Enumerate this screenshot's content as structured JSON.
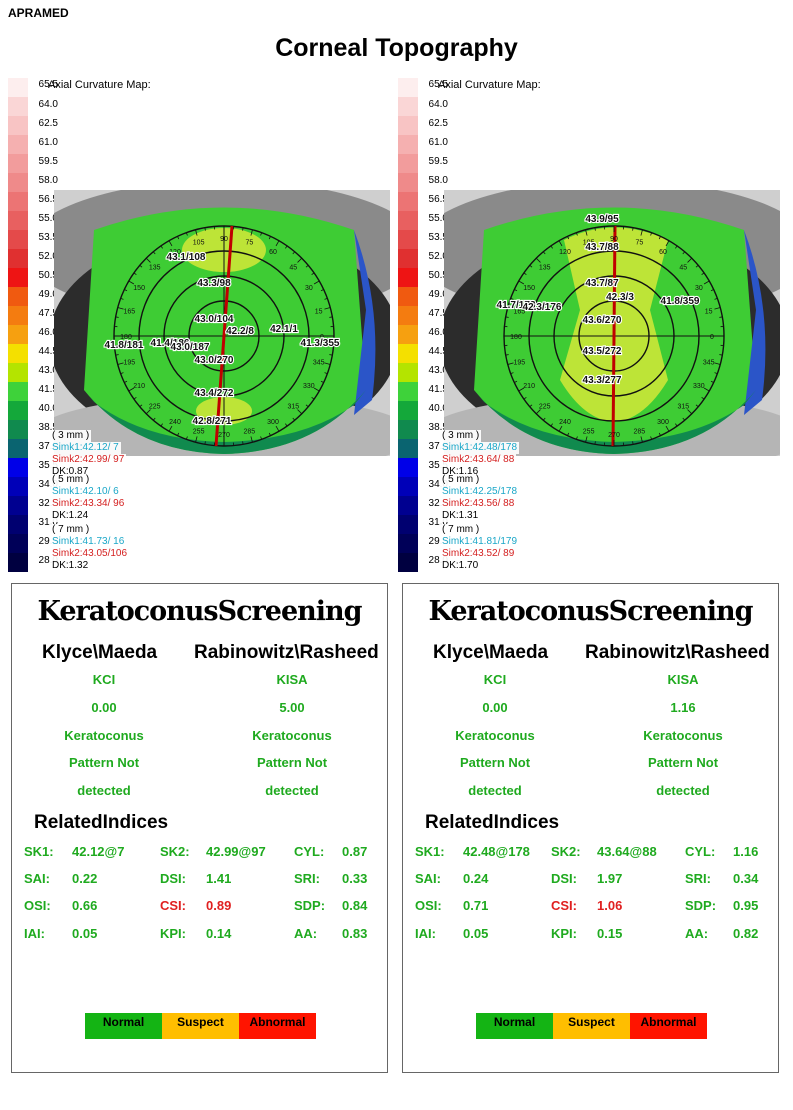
{
  "brand": "APRAMED",
  "title": "Corneal Topography",
  "scale_labels": [
    "65.5",
    "64.0",
    "62.5",
    "61.0",
    "59.5",
    "58.0",
    "56.5",
    "55.0",
    "53.5",
    "52.0",
    "50.5",
    "49.0",
    "47.5",
    "46.0",
    "44.5",
    "43.0",
    "41.5",
    "40.0",
    "38.5",
    "37.0",
    "35.5",
    "34.0",
    "32.5",
    "31.0",
    "29.5",
    "28.0"
  ],
  "scale_colors": [
    "#fdeeee",
    "#fad6d6",
    "#f8c4c4",
    "#f5b0b0",
    "#f29c9c",
    "#ef8a8a",
    "#ec7474",
    "#e86060",
    "#e44a4a",
    "#e03030",
    "#ee1414",
    "#f05a10",
    "#f47c10",
    "#f6a010",
    "#f4e000",
    "#b4e400",
    "#3ed23a",
    "#14a83a",
    "#108a4e",
    "#0a6470",
    "#0000e8",
    "#0000b8",
    "#000090",
    "#000070",
    "#000058",
    "#000040"
  ],
  "maps": [
    {
      "map_title": "Axial Curvature Map:",
      "zones": [
        {
          "label": "( 3 mm )",
          "simk1": "Simk1:42.12/  7",
          "simk2": "Simk2:42.99/ 97",
          "dk": "DK:0.87"
        },
        {
          "label": "( 5 mm )",
          "simk1": "Simk1:42.10/  6",
          "simk2": "Simk2:43.34/ 96",
          "dk": "DK:1.24"
        },
        {
          "label": "( 7 mm )",
          "simk1": "Simk1:41.73/ 16",
          "simk2": "Simk2:43.05/106",
          "dk": "DK:1.32"
        }
      ],
      "annotations": [
        "43.1/108",
        "43.3/98",
        "43.0/104",
        "42.2/8",
        "42.1/1",
        "41.3/355",
        "41.8/181",
        "41.4/186",
        "43.0/187",
        "43.0/270",
        "43.4/272",
        "42.8/271"
      ],
      "angles": [
        "90",
        "75",
        "60",
        "45",
        "30",
        "15",
        "0",
        "345",
        "330",
        "315",
        "300",
        "285",
        "270",
        "255",
        "240",
        "225",
        "210",
        "195",
        "180",
        "165",
        "150",
        "135",
        "120",
        "105"
      ]
    },
    {
      "map_title": "Axial Curvature Map:",
      "zones": [
        {
          "label": "( 3 mm )",
          "simk1": "Simk1:42.48/178",
          "simk2": "Simk2:43.64/ 88",
          "dk": "DK:1.16"
        },
        {
          "label": "( 5 mm )",
          "simk1": "Simk1:42.25/178",
          "simk2": "Simk2:43.56/ 88",
          "dk": "DK:1.31"
        },
        {
          "label": "( 7 mm )",
          "simk1": "Simk1:41.81/179",
          "simk2": "Simk2:43.52/ 89",
          "dk": "DK:1.70"
        }
      ],
      "annotations": [
        "43.9/95",
        "43.7/88",
        "43.7/87",
        "42.3/3",
        "41.8/359",
        "41.7/178",
        "42.3/176",
        "43.6/270",
        "43.5/272",
        "43.3/277"
      ],
      "angles": [
        "90",
        "75",
        "60",
        "45",
        "30",
        "15",
        "0",
        "345",
        "330",
        "315",
        "300",
        "285",
        "270",
        "255",
        "240",
        "225",
        "210",
        "195",
        "180",
        "165",
        "150",
        "135",
        "120",
        "105"
      ]
    }
  ],
  "panels": [
    {
      "heading": "KeratoconusScreening",
      "col1_title": "Klyce\\Maeda",
      "col2_title": "Rabinowitz\\Rasheed",
      "col1": {
        "index_name": "KCI",
        "value": "0.00",
        "line1": "Keratoconus",
        "line2": "Pattern Not",
        "line3": "detected"
      },
      "col2": {
        "index_name": "KISA",
        "value": "5.00",
        "line1": "Keratoconus",
        "line2": "Pattern Not",
        "line3": "detected"
      },
      "related_title": "RelatedIndices",
      "indices": [
        {
          "label": "SK1:",
          "value": "42.12@7",
          "red": false
        },
        {
          "label": "SK2:",
          "value": "42.99@97",
          "red": false
        },
        {
          "label": "CYL:",
          "value": "0.87",
          "red": false
        },
        {
          "label": "SAI:",
          "value": "0.22",
          "red": false
        },
        {
          "label": "DSI:",
          "value": "1.41",
          "red": false
        },
        {
          "label": "SRI:",
          "value": "0.33",
          "red": false
        },
        {
          "label": "OSI:",
          "value": "0.66",
          "red": false
        },
        {
          "label": "CSI:",
          "value": "0.89",
          "red": true
        },
        {
          "label": "SDP:",
          "value": "0.84",
          "red": false
        },
        {
          "label": "IAI:",
          "value": "0.05",
          "red": false
        },
        {
          "label": "KPI:",
          "value": "0.14",
          "red": false
        },
        {
          "label": "AA:",
          "value": "0.83",
          "red": false
        }
      ],
      "legend": [
        {
          "label": "Normal",
          "color": "#14b414"
        },
        {
          "label": "Suspect",
          "color": "#ffbe00"
        },
        {
          "label": "Abnormal",
          "color": "#ff1400"
        }
      ]
    },
    {
      "heading": "KeratoconusScreening",
      "col1_title": "Klyce\\Maeda",
      "col2_title": "Rabinowitz\\Rasheed",
      "col1": {
        "index_name": "KCI",
        "value": "0.00",
        "line1": "Keratoconus",
        "line2": "Pattern Not",
        "line3": "detected"
      },
      "col2": {
        "index_name": "KISA",
        "value": "1.16",
        "line1": "Keratoconus",
        "line2": "Pattern Not",
        "line3": "detected"
      },
      "related_title": "RelatedIndices",
      "indices": [
        {
          "label": "SK1:",
          "value": "42.48@178",
          "red": false
        },
        {
          "label": "SK2:",
          "value": "43.64@88",
          "red": false
        },
        {
          "label": "CYL:",
          "value": "1.16",
          "red": false
        },
        {
          "label": "SAI:",
          "value": "0.24",
          "red": false
        },
        {
          "label": "DSI:",
          "value": "1.97",
          "red": false
        },
        {
          "label": "SRI:",
          "value": "0.34",
          "red": false
        },
        {
          "label": "OSI:",
          "value": "0.71",
          "red": false
        },
        {
          "label": "CSI:",
          "value": "1.06",
          "red": true
        },
        {
          "label": "SDP:",
          "value": "0.95",
          "red": false
        },
        {
          "label": "IAI:",
          "value": "0.05",
          "red": false
        },
        {
          "label": "KPI:",
          "value": "0.15",
          "red": false
        },
        {
          "label": "AA:",
          "value": "0.82",
          "red": false
        }
      ],
      "legend": [
        {
          "label": "Normal",
          "color": "#14b414"
        },
        {
          "label": "Suspect",
          "color": "#ffbe00"
        },
        {
          "label": "Abnormal",
          "color": "#ff1400"
        }
      ]
    }
  ]
}
